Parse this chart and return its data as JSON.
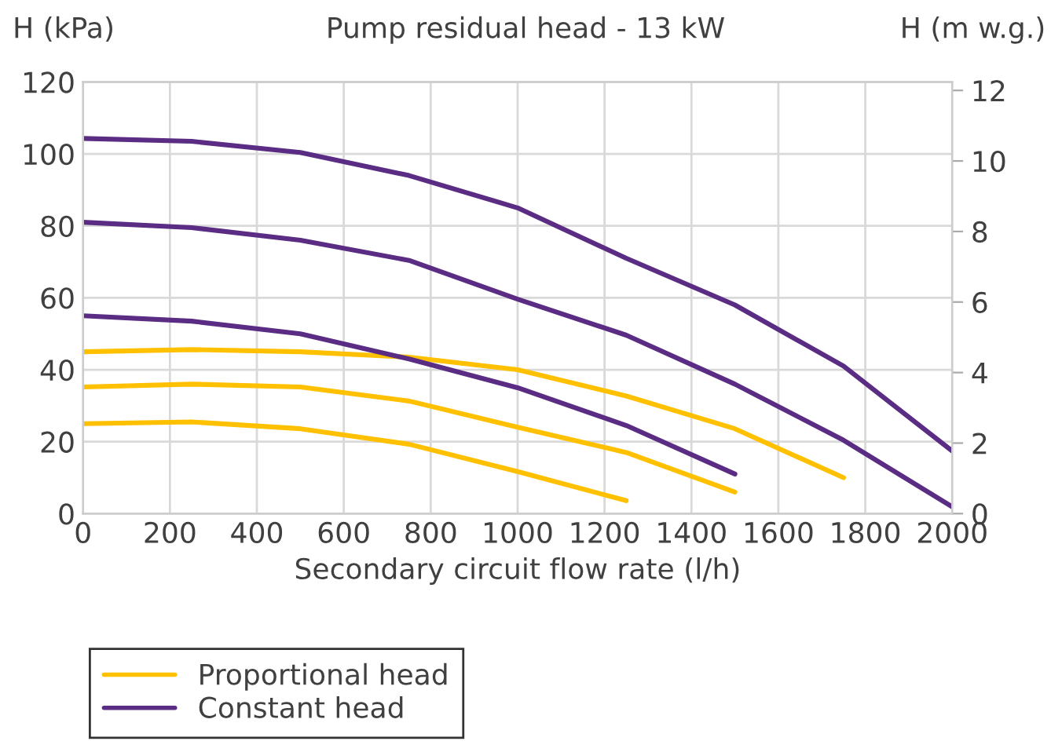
{
  "chart_data": {
    "type": "line",
    "title": "Pump residual head - 13 kW",
    "xlabel": "Secondary circuit flow rate (l/h)",
    "ylabel": "H (kPa)",
    "y2label": "H (m w.g.)",
    "x": [
      0,
      250,
      500,
      750,
      1000,
      1250,
      1500,
      1750,
      2000
    ],
    "series": [
      {
        "name": "Proportional head",
        "color": "#ffc000",
        "values": [
          45,
          45.6,
          45,
          43.5,
          40,
          32.7,
          23.6,
          10,
          null
        ]
      },
      {
        "color": "#ffc000",
        "values": [
          35.2,
          36,
          35.2,
          31.3,
          24,
          17,
          6,
          null,
          null
        ]
      },
      {
        "color": "#ffc000",
        "values": [
          25,
          25.5,
          23.6,
          19.3,
          11.7,
          3.6,
          null,
          null,
          null
        ]
      },
      {
        "name": "Constant head",
        "color": "#5b2c83",
        "values": [
          104.3,
          103.5,
          100.4,
          94,
          85,
          71,
          58,
          41,
          17.4
        ]
      },
      {
        "color": "#5b2c83",
        "values": [
          81,
          79.5,
          76,
          70.4,
          59.6,
          49.6,
          36,
          20.4,
          1.9
        ]
      },
      {
        "color": "#5b2c83",
        "values": [
          55,
          53.5,
          50,
          43,
          35,
          24.5,
          11,
          null,
          null
        ]
      }
    ],
    "xlim": [
      0,
      2000
    ],
    "xticks": [
      0,
      200,
      400,
      600,
      800,
      1000,
      1200,
      1400,
      1600,
      1800,
      2000
    ],
    "ylim": [
      0,
      120
    ],
    "yticks": [
      0,
      20,
      40,
      60,
      80,
      100,
      120
    ],
    "y2lim": [
      0,
      12.24
    ],
    "y2ticks": [
      0,
      2,
      4,
      6,
      8,
      10,
      12
    ],
    "grid": true,
    "legend": "bottom left",
    "marker": "none",
    "line_style": "solid"
  }
}
